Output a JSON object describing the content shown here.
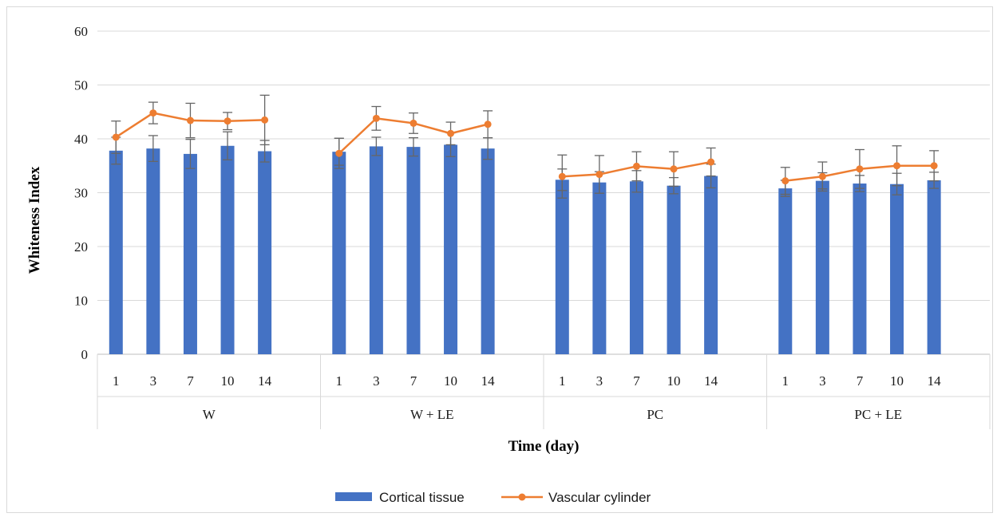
{
  "chart_data": {
    "type": "bar",
    "xlabel": "Time (day)",
    "ylabel": "Whiteness Index",
    "ylim": [
      0,
      60
    ],
    "yticks": [
      0,
      10,
      20,
      30,
      40,
      50,
      60
    ],
    "grid": true,
    "legend_position": "bottom",
    "groups": [
      {
        "name": "W",
        "days": [
          "1",
          "3",
          "7",
          "10",
          "14"
        ]
      },
      {
        "name": "W + LE",
        "days": [
          "1",
          "3",
          "7",
          "10",
          "14"
        ]
      },
      {
        "name": "PC",
        "days": [
          "1",
          "3",
          "7",
          "10",
          "14"
        ]
      },
      {
        "name": "PC + LE",
        "days": [
          "1",
          "3",
          "7",
          "10",
          "14"
        ]
      }
    ],
    "series": [
      {
        "name": "Cortical tissue",
        "kind": "bar",
        "color": "#4472C4",
        "values": [
          [
            37.8,
            38.2,
            37.2,
            38.7,
            37.7
          ],
          [
            37.6,
            38.6,
            38.5,
            38.9,
            38.2
          ],
          [
            32.4,
            31.9,
            32.1,
            31.3,
            33.1
          ],
          [
            30.8,
            32.2,
            31.7,
            31.6,
            32.3
          ]
        ],
        "errors": [
          [
            2.5,
            2.4,
            2.7,
            2.6,
            2.0
          ],
          [
            2.5,
            1.7,
            1.7,
            2.2,
            2.0
          ],
          [
            2.0,
            2.0,
            2.0,
            1.5,
            2.2
          ],
          [
            1.5,
            1.5,
            1.5,
            2.0,
            1.5
          ]
        ]
      },
      {
        "name": "Vascular cylinder",
        "kind": "line",
        "color": "#ED7D31",
        "values": [
          [
            40.3,
            44.8,
            43.4,
            43.3,
            43.5
          ],
          [
            37.3,
            43.8,
            42.9,
            41.0,
            42.7
          ],
          [
            33.0,
            33.4,
            34.9,
            34.4,
            35.7
          ],
          [
            32.2,
            33.0,
            34.4,
            35.0,
            35.0
          ]
        ],
        "errors": [
          [
            3.0,
            2.0,
            3.2,
            1.6,
            4.6
          ],
          [
            2.8,
            2.2,
            1.9,
            2.1,
            2.5
          ],
          [
            4.0,
            3.5,
            2.7,
            3.2,
            2.6
          ],
          [
            2.5,
            2.7,
            3.6,
            3.7,
            2.8
          ]
        ]
      }
    ]
  }
}
